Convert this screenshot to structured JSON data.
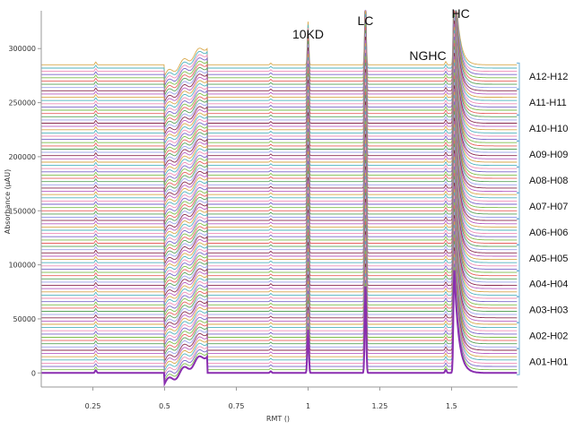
{
  "chart_data": {
    "type": "line",
    "title": "",
    "xlabel": "RMT ()",
    "ylabel": "Absorbance (µAU)",
    "xlim": [
      0.07,
      1.73
    ],
    "ylim": [
      -13000,
      335000
    ],
    "x_ticks": [
      0.25,
      0.5,
      0.75,
      1,
      1.25,
      1.5
    ],
    "x_tick_labels": [
      "0.25",
      "0.5",
      "0.75",
      "1",
      "1.25",
      "1.5"
    ],
    "y_ticks": [
      0,
      50000,
      100000,
      150000,
      200000,
      250000,
      300000
    ],
    "y_tick_labels": [
      "0",
      "50000",
      "100000",
      "150000",
      "200000",
      "250000",
      "300000"
    ],
    "grid": false,
    "trace_count": 96,
    "trace_offset_step": 3000,
    "peaks": [
      {
        "label": "10KD",
        "x": 1.0
      },
      {
        "label": "LC",
        "x": 1.2
      },
      {
        "label": "NGHC",
        "x": 1.48
      },
      {
        "label": "HC",
        "x": 1.51
      }
    ],
    "groups": [
      "A01-H01",
      "A02-H02",
      "A03-H03",
      "A04-H04",
      "A05-H05",
      "A06-H06",
      "A07-H07",
      "A08-H08",
      "A09-H09",
      "A10-H10",
      "A11-H11",
      "A12-H12"
    ],
    "series_colors": [
      "#e8605f",
      "#7fbf4c",
      "#7a66c9",
      "#ef8fb7",
      "#4fb3bf",
      "#d9a84a",
      "#b85fc2",
      "#8a2a4e",
      "#9aa0ea",
      "#5aa35a"
    ],
    "baseline_color": "#8a2fb0",
    "bracket_color": "#6aaed6"
  }
}
